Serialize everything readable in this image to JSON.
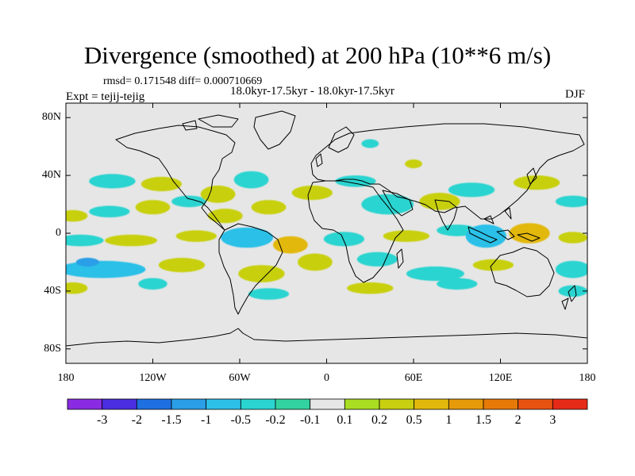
{
  "title": "Divergence (smoothed) at 200 hPa (10**6 m/s)",
  "stats": "rmsd= 0.171548 diff= 0.000710669",
  "period": "18.0kyr-17.5kyr - 18.0kyr-17.5kyr",
  "experiment": "Expt = tejij-tejig",
  "season": "DJF",
  "map": {
    "projection": "cylindrical equidistant",
    "lon_range": [
      -180,
      180
    ],
    "lat_range": [
      -90,
      90
    ],
    "background_color": "#e6e6e6",
    "x_ticks": [
      {
        "value": -180,
        "label": "180"
      },
      {
        "value": -120,
        "label": "120W"
      },
      {
        "value": -60,
        "label": "60W"
      },
      {
        "value": 0,
        "label": "0"
      },
      {
        "value": 60,
        "label": "60E"
      },
      {
        "value": 120,
        "label": "120E"
      },
      {
        "value": 180,
        "label": "180"
      }
    ],
    "y_ticks": [
      {
        "value": 80,
        "label": "80N"
      },
      {
        "value": 40,
        "label": "40N"
      },
      {
        "value": 0,
        "label": "0"
      },
      {
        "value": -40,
        "label": "40S"
      },
      {
        "value": -80,
        "label": "80S"
      }
    ]
  },
  "colorbar": {
    "colors": [
      "#8a2be2",
      "#4a2ee0",
      "#1e6fe0",
      "#2a9ee6",
      "#2cc0e8",
      "#2ad4d0",
      "#33d2a0",
      "#e6e6e6",
      "#a8dd22",
      "#c8d010",
      "#e3b80c",
      "#e69a0a",
      "#e67a08",
      "#e85210",
      "#e62a18"
    ],
    "labels": [
      "-3",
      "-2",
      "-1.5",
      "-1",
      "-0.5",
      "-0.2",
      "-0.1",
      "0.1",
      "0.2",
      "0.5",
      "1",
      "1.5",
      "2",
      "3"
    ]
  },
  "chart_data": {
    "type": "heatmap",
    "title": "Divergence (smoothed) at 200 hPa (10**6 m/s)",
    "units": "10**6 m/s",
    "x_range_lon": [
      -180,
      180
    ],
    "y_range_lat": [
      -90,
      90
    ],
    "levels": [
      -3,
      -2,
      -1.5,
      -1,
      -0.5,
      -0.2,
      -0.1,
      0.1,
      0.2,
      0.5,
      1,
      1.5,
      2,
      3
    ],
    "features": [
      {
        "lon": -175,
        "lat": 12,
        "rlon": 10,
        "rlat": 4,
        "value": 0.3
      },
      {
        "lon": -150,
        "lat": 15,
        "rlon": 14,
        "rlat": 4,
        "value": -0.4
      },
      {
        "lon": -120,
        "lat": 18,
        "rlon": 12,
        "rlat": 5,
        "value": 0.3
      },
      {
        "lon": -95,
        "lat": 22,
        "rlon": 12,
        "rlat": 4,
        "value": -0.4
      },
      {
        "lon": -148,
        "lat": 36,
        "rlon": 16,
        "rlat": 5,
        "value": -0.4
      },
      {
        "lon": -114,
        "lat": 34,
        "rlon": 14,
        "rlat": 5,
        "value": 0.3
      },
      {
        "lon": -75,
        "lat": 27,
        "rlon": 12,
        "rlat": 6,
        "value": 0.4
      },
      {
        "lon": -52,
        "lat": 37,
        "rlon": 12,
        "rlat": 6,
        "value": -0.4
      },
      {
        "lon": -70,
        "lat": 12,
        "rlon": 12,
        "rlat": 5,
        "value": 0.3
      },
      {
        "lon": -40,
        "lat": 18,
        "rlon": 12,
        "rlat": 5,
        "value": 0.3
      },
      {
        "lon": -10,
        "lat": 28,
        "rlon": 14,
        "rlat": 5,
        "value": 0.3
      },
      {
        "lon": 20,
        "lat": 36,
        "rlon": 14,
        "rlat": 4,
        "value": -0.4
      },
      {
        "lon": 42,
        "lat": 20,
        "rlon": 18,
        "rlat": 7,
        "value": -0.5
      },
      {
        "lon": 78,
        "lat": 22,
        "rlon": 14,
        "rlat": 6,
        "value": 0.3
      },
      {
        "lon": 100,
        "lat": 30,
        "rlon": 16,
        "rlat": 5,
        "value": -0.4
      },
      {
        "lon": 145,
        "lat": 35,
        "rlon": 16,
        "rlat": 5,
        "value": 0.3
      },
      {
        "lon": 170,
        "lat": 22,
        "rlon": 12,
        "rlat": 4,
        "value": -0.4
      },
      {
        "lon": -170,
        "lat": -5,
        "rlon": 16,
        "rlat": 4,
        "value": -0.4
      },
      {
        "lon": -135,
        "lat": -5,
        "rlon": 18,
        "rlat": 4,
        "value": 0.3
      },
      {
        "lon": -90,
        "lat": -2,
        "rlon": 14,
        "rlat": 4,
        "value": 0.3
      },
      {
        "lon": -55,
        "lat": -3,
        "rlon": 18,
        "rlat": 7,
        "value": -0.6
      },
      {
        "lon": -25,
        "lat": -8,
        "rlon": 12,
        "rlat": 6,
        "value": 0.5
      },
      {
        "lon": 12,
        "lat": -4,
        "rlon": 14,
        "rlat": 5,
        "value": -0.4
      },
      {
        "lon": 55,
        "lat": -2,
        "rlon": 16,
        "rlat": 4,
        "value": 0.3
      },
      {
        "lon": 90,
        "lat": 2,
        "rlon": 14,
        "rlat": 4,
        "value": -0.4
      },
      {
        "lon": 110,
        "lat": -2,
        "rlon": 14,
        "rlat": 8,
        "value": -0.6
      },
      {
        "lon": 140,
        "lat": 0,
        "rlon": 14,
        "rlat": 7,
        "value": 0.6
      },
      {
        "lon": 170,
        "lat": -3,
        "rlon": 10,
        "rlat": 4,
        "value": 0.3
      },
      {
        "lon": -155,
        "lat": -25,
        "rlon": 30,
        "rlat": 6,
        "value": -0.7
      },
      {
        "lon": -165,
        "lat": -20,
        "rlon": 8,
        "rlat": 3,
        "value": -1.2
      },
      {
        "lon": -100,
        "lat": -22,
        "rlon": 16,
        "rlat": 5,
        "value": 0.3
      },
      {
        "lon": -45,
        "lat": -28,
        "rlon": 16,
        "rlat": 6,
        "value": 0.3
      },
      {
        "lon": -8,
        "lat": -20,
        "rlon": 12,
        "rlat": 6,
        "value": 0.4
      },
      {
        "lon": 35,
        "lat": -18,
        "rlon": 14,
        "rlat": 5,
        "value": -0.4
      },
      {
        "lon": 75,
        "lat": -28,
        "rlon": 20,
        "rlat": 5,
        "value": -0.4
      },
      {
        "lon": 115,
        "lat": -22,
        "rlon": 14,
        "rlat": 4,
        "value": 0.3
      },
      {
        "lon": 170,
        "lat": -25,
        "rlon": 12,
        "rlat": 6,
        "value": -0.4
      },
      {
        "lon": -175,
        "lat": -38,
        "rlon": 10,
        "rlat": 4,
        "value": 0.3
      },
      {
        "lon": -120,
        "lat": -35,
        "rlon": 10,
        "rlat": 4,
        "value": -0.4
      },
      {
        "lon": -40,
        "lat": -42,
        "rlon": 14,
        "rlat": 4,
        "value": -0.4
      },
      {
        "lon": 30,
        "lat": -38,
        "rlon": 16,
        "rlat": 4,
        "value": 0.3
      },
      {
        "lon": 90,
        "lat": -35,
        "rlon": 14,
        "rlat": 4,
        "value": -0.3
      },
      {
        "lon": 170,
        "lat": -40,
        "rlon": 10,
        "rlat": 4,
        "value": -0.3
      },
      {
        "lon": 30,
        "lat": 62,
        "rlon": 6,
        "rlat": 3,
        "value": -0.3
      },
      {
        "lon": 60,
        "lat": 48,
        "rlon": 6,
        "rlat": 3,
        "value": 0.2
      }
    ]
  }
}
